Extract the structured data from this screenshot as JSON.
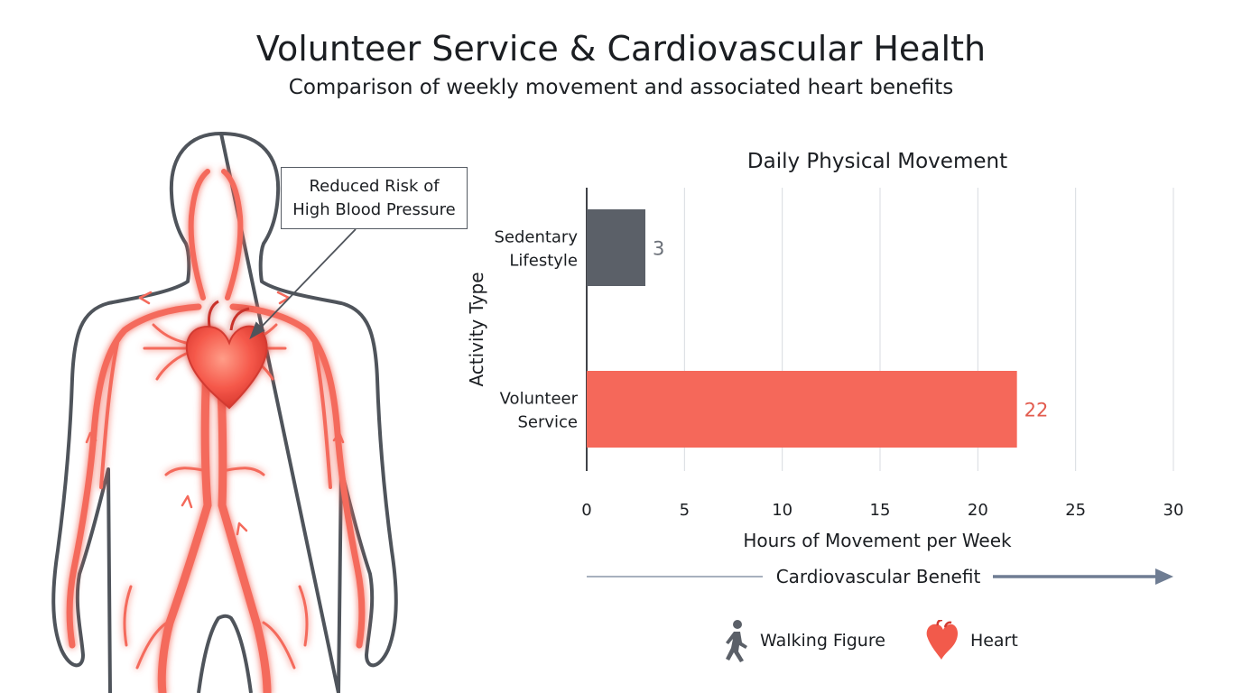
{
  "header": {
    "title": "Volunteer Service & Cardiovascular Health",
    "subtitle": "Comparison of weekly movement and associated heart benefits"
  },
  "illustration": {
    "callout_line1": "Reduced Risk of",
    "callout_line2": "High Blood Pressure"
  },
  "chart_data": {
    "type": "bar",
    "orientation": "horizontal",
    "title": "Daily Physical Movement",
    "xlabel": "Hours of Movement per Week",
    "ylabel": "Activity Type",
    "categories": [
      "Sedentary Lifestyle",
      "Volunteer Service"
    ],
    "category_lines": [
      [
        "Sedentary",
        "Lifestyle"
      ],
      [
        "Volunteer",
        "Service"
      ]
    ],
    "values": [
      3,
      22
    ],
    "data_labels": [
      "3",
      "22"
    ],
    "bar_colors": [
      "#5b6068",
      "#f5685a"
    ],
    "label_colors": [
      "#6b7078",
      "#e25b4e"
    ],
    "xlim": [
      0,
      30
    ],
    "xticks": [
      0,
      5,
      10,
      15,
      20,
      25,
      30
    ],
    "grid": true,
    "benefit_arrow_label": "Cardiovascular Benefit"
  },
  "legend": {
    "items": [
      {
        "icon": "walking-figure-icon",
        "label": "Walking Figure"
      },
      {
        "icon": "heart-icon",
        "label": "Heart"
      }
    ]
  },
  "colors": {
    "accent": "#f5685a",
    "dark_bar": "#5b6068",
    "arrow": "#6f7d93",
    "outline": "#555b63"
  }
}
